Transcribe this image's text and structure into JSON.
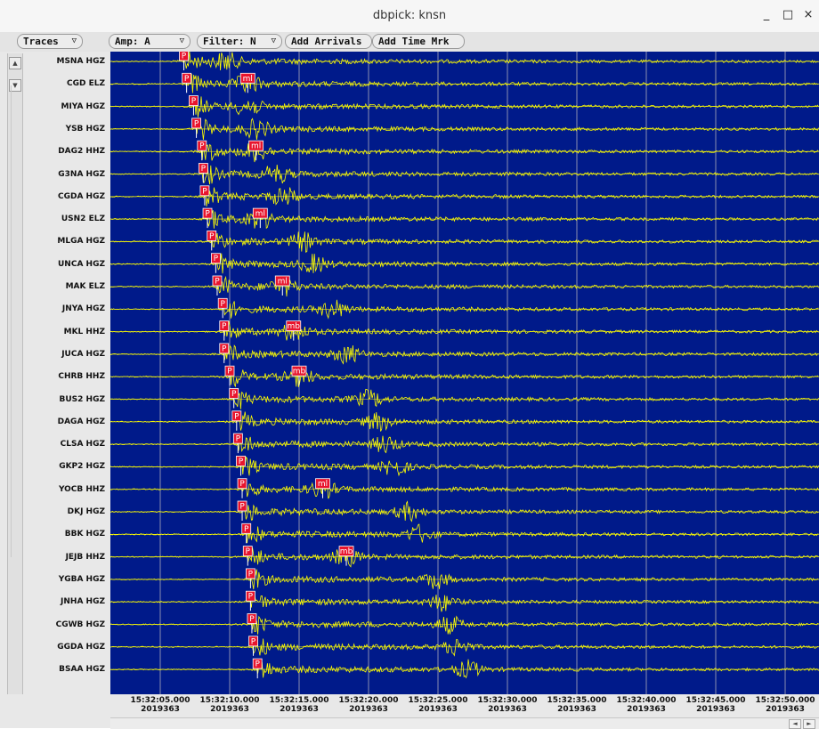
{
  "window": {
    "title": "dbpick: knsn",
    "minimize": "_",
    "maximize": "□",
    "close": "×"
  },
  "toolbar": {
    "traces_label": "Traces",
    "amp_label": "Amp: A",
    "filter_label": "Filter: N",
    "add_arrivals_label": "Add Arrivals",
    "add_time_mark_label": "Add Time Mrk"
  },
  "colors": {
    "plot_background": "#001a8a",
    "trace": "#ffff00",
    "pick_marker": "#e8142d",
    "grid": "#8a8fb0"
  },
  "traces": [
    {
      "label": "MSNA HGZ",
      "p": 1.7,
      "picks": [
        {
          "text": "P",
          "t": 1.7
        }
      ]
    },
    {
      "label": "CGD ELZ",
      "p": 1.9,
      "picks": [
        {
          "text": "P",
          "t": 1.9
        },
        {
          "text": "ml",
          "t": 6.3
        }
      ]
    },
    {
      "label": "MIYA HGZ",
      "p": 2.4,
      "picks": [
        {
          "text": "P",
          "t": 2.4
        }
      ]
    },
    {
      "label": "YSB HGZ",
      "p": 2.6,
      "picks": [
        {
          "text": "P",
          "t": 2.6
        }
      ]
    },
    {
      "label": "DAG2 HHZ",
      "p": 3.0,
      "picks": [
        {
          "text": "P",
          "t": 3.0
        },
        {
          "text": "ml",
          "t": 6.9
        }
      ]
    },
    {
      "label": "G3NA HGZ",
      "p": 3.1,
      "picks": [
        {
          "text": "P",
          "t": 3.1
        }
      ]
    },
    {
      "label": "CGDA HGZ",
      "p": 3.2,
      "picks": [
        {
          "text": "P",
          "t": 3.2
        }
      ]
    },
    {
      "label": "USN2 ELZ",
      "p": 3.4,
      "picks": [
        {
          "text": "P",
          "t": 3.4
        },
        {
          "text": "ml",
          "t": 7.2
        }
      ]
    },
    {
      "label": "MLGA HGZ",
      "p": 3.7,
      "picks": [
        {
          "text": "P",
          "t": 3.7
        }
      ]
    },
    {
      "label": "UNCA HGZ",
      "p": 4.0,
      "picks": [
        {
          "text": "P",
          "t": 4.0
        }
      ]
    },
    {
      "label": "MAK ELZ",
      "p": 4.1,
      "picks": [
        {
          "text": "P",
          "t": 4.1
        },
        {
          "text": "ml",
          "t": 8.8
        }
      ]
    },
    {
      "label": "JNYA HGZ",
      "p": 4.5,
      "picks": [
        {
          "text": "P",
          "t": 4.5
        }
      ]
    },
    {
      "label": "MKL HHZ",
      "p": 4.6,
      "picks": [
        {
          "text": "P",
          "t": 4.6
        },
        {
          "text": "mb",
          "t": 9.6
        }
      ]
    },
    {
      "label": "JUCA HGZ",
      "p": 4.6,
      "picks": [
        {
          "text": "P",
          "t": 4.6
        }
      ]
    },
    {
      "label": "CHRB HHZ",
      "p": 5.0,
      "picks": [
        {
          "text": "P",
          "t": 5.0
        },
        {
          "text": "mb",
          "t": 10.0
        }
      ]
    },
    {
      "label": "BUS2 HGZ",
      "p": 5.3,
      "picks": [
        {
          "text": "P",
          "t": 5.3
        }
      ]
    },
    {
      "label": "DAGA HGZ",
      "p": 5.5,
      "picks": [
        {
          "text": "P",
          "t": 5.5
        }
      ]
    },
    {
      "label": "CLSA HGZ",
      "p": 5.6,
      "picks": [
        {
          "text": "P",
          "t": 5.6
        }
      ]
    },
    {
      "label": "GKP2 HGZ",
      "p": 5.8,
      "picks": [
        {
          "text": "P",
          "t": 5.8
        }
      ]
    },
    {
      "label": "YOCB HHZ",
      "p": 5.9,
      "picks": [
        {
          "text": "P",
          "t": 5.9
        },
        {
          "text": "ml",
          "t": 11.7
        }
      ]
    },
    {
      "label": "DKJ HGZ",
      "p": 5.9,
      "picks": [
        {
          "text": "P",
          "t": 5.9
        }
      ]
    },
    {
      "label": "BBK HGZ",
      "p": 6.2,
      "picks": [
        {
          "text": "P",
          "t": 6.2
        }
      ]
    },
    {
      "label": "JEJB HHZ",
      "p": 6.3,
      "picks": [
        {
          "text": "P",
          "t": 6.3
        },
        {
          "text": "mb",
          "t": 13.4
        }
      ]
    },
    {
      "label": "YGBA HGZ",
      "p": 6.5,
      "picks": [
        {
          "text": "P",
          "t": 6.5
        }
      ]
    },
    {
      "label": "JNHA HGZ",
      "p": 6.5,
      "picks": [
        {
          "text": "P",
          "t": 6.5
        }
      ]
    },
    {
      "label": "CGWB HGZ",
      "p": 6.6,
      "picks": [
        {
          "text": "P",
          "t": 6.6
        }
      ]
    },
    {
      "label": "GGDA HGZ",
      "p": 6.7,
      "picks": [
        {
          "text": "P",
          "t": 6.7
        }
      ]
    },
    {
      "label": "BSAA HGZ",
      "p": 7.0,
      "picks": [
        {
          "text": "P",
          "t": 7.0
        }
      ]
    }
  ],
  "time_axis": [
    {
      "time": "15:32:05.000",
      "date": "2019363"
    },
    {
      "time": "15:32:10.000",
      "date": "2019363"
    },
    {
      "time": "15:32:15.000",
      "date": "2019363"
    },
    {
      "time": "15:32:20.000",
      "date": "2019363"
    },
    {
      "time": "15:32:25.000",
      "date": "2019363"
    },
    {
      "time": "15:32:30.000",
      "date": "2019363"
    },
    {
      "time": "15:32:35.000",
      "date": "2019363"
    },
    {
      "time": "15:32:40.000",
      "date": "2019363"
    },
    {
      "time": "15:32:45.000",
      "date": "2019363"
    },
    {
      "time": "15:32:50.000",
      "date": "2019363"
    }
  ],
  "scroll": {
    "up": "▲",
    "down": "▼",
    "left": "◄",
    "right": "►"
  }
}
